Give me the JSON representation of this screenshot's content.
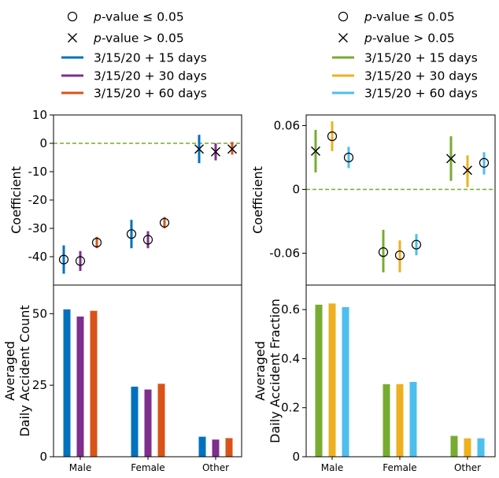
{
  "legends": {
    "left": [
      {
        "marker": "circle",
        "label_prefix": "p",
        "label_suffix": "-value  ≤  0.05"
      },
      {
        "marker": "x",
        "label_prefix": "p",
        "label_suffix": "-value  >  0.05"
      },
      {
        "marker": "line",
        "color": "#0072bd",
        "label": "3/15/20 + 15 days"
      },
      {
        "marker": "line",
        "color": "#7e2f8e",
        "label": "3/15/20 + 30 days"
      },
      {
        "marker": "line",
        "color": "#d95319",
        "label": "3/15/20 + 60 days"
      }
    ],
    "right": [
      {
        "marker": "circle",
        "label_prefix": "p",
        "label_suffix": "-value  ≤  0.05"
      },
      {
        "marker": "x",
        "label_prefix": "p",
        "label_suffix": "-value  >  0.05"
      },
      {
        "marker": "line",
        "color": "#77ac30",
        "label": "3/15/20 + 15 days"
      },
      {
        "marker": "line",
        "color": "#edb120",
        "label": "3/15/20 + 30 days"
      },
      {
        "marker": "line",
        "color": "#4dbeee",
        "label": "3/15/20 + 60 days"
      }
    ]
  },
  "chart_data": [
    {
      "id": "top-left",
      "type": "errorbar",
      "ylabel": "Coefficient",
      "ylim": [
        -50,
        10
      ],
      "yticks": [
        10,
        0,
        -10,
        -20,
        -30,
        -40
      ],
      "ytick_labels": [
        "10",
        "0",
        "-10",
        "-20",
        "-30",
        "-40"
      ],
      "reference_line": 0,
      "reference_color": "#77ac30",
      "categories": [
        "Male",
        "Female",
        "Other"
      ],
      "series": [
        {
          "name": "3/15/20 + 15 days",
          "color": "#0072bd",
          "values": [
            -41,
            -32,
            -2
          ],
          "lower": [
            -46,
            -37,
            -7
          ],
          "upper": [
            -36,
            -27,
            3
          ],
          "significant": [
            true,
            true,
            false
          ]
        },
        {
          "name": "3/15/20 + 30 days",
          "color": "#7e2f8e",
          "values": [
            -41.5,
            -34,
            -3
          ],
          "lower": [
            -45,
            -37,
            -6
          ],
          "upper": [
            -38,
            -31,
            0
          ],
          "significant": [
            true,
            true,
            false
          ]
        },
        {
          "name": "3/15/20 + 60 days",
          "color": "#d95319",
          "values": [
            -35,
            -28,
            -2
          ],
          "lower": [
            -37,
            -30,
            -4
          ],
          "upper": [
            -33,
            -26,
            0.5
          ],
          "significant": [
            true,
            true,
            false
          ]
        }
      ]
    },
    {
      "id": "top-right",
      "type": "errorbar",
      "ylabel": "Coefficient",
      "ylim": [
        -0.09,
        0.07
      ],
      "yticks": [
        0.06,
        0,
        -0.06
      ],
      "ytick_labels": [
        "0.06",
        "0",
        "-0.06"
      ],
      "reference_line": 0,
      "reference_color": "#77ac30",
      "categories": [
        "Male",
        "Female",
        "Other"
      ],
      "series": [
        {
          "name": "3/15/20 + 15 days",
          "color": "#77ac30",
          "values": [
            0.036,
            -0.059,
            0.029
          ],
          "lower": [
            0.016,
            -0.078,
            0.008
          ],
          "upper": [
            0.056,
            -0.038,
            0.05
          ],
          "significant": [
            false,
            true,
            false
          ]
        },
        {
          "name": "3/15/20 + 30 days",
          "color": "#edb120",
          "values": [
            0.05,
            -0.062,
            0.018
          ],
          "lower": [
            0.036,
            -0.078,
            0.002
          ],
          "upper": [
            0.064,
            -0.048,
            0.032
          ],
          "significant": [
            true,
            true,
            false
          ]
        },
        {
          "name": "3/15/20 + 60 days",
          "color": "#4dbeee",
          "values": [
            0.03,
            -0.052,
            0.025
          ],
          "lower": [
            0.02,
            -0.062,
            0.014
          ],
          "upper": [
            0.04,
            -0.042,
            0.035
          ],
          "significant": [
            true,
            true,
            true
          ]
        }
      ]
    },
    {
      "id": "bottom-left",
      "type": "bar",
      "ylabel_lines": [
        "Averaged",
        "Daily Accident Count"
      ],
      "ylim": [
        0,
        60
      ],
      "yticks": [
        0,
        25,
        50
      ],
      "ytick_labels": [
        "0",
        "25",
        "50"
      ],
      "categories": [
        "Male",
        "Female",
        "Other"
      ],
      "series": [
        {
          "name": "3/15/20 + 15 days",
          "color": "#0072bd",
          "values": [
            51.5,
            24.5,
            7
          ]
        },
        {
          "name": "3/15/20 + 30 days",
          "color": "#7e2f8e",
          "values": [
            49,
            23.5,
            6
          ]
        },
        {
          "name": "3/15/20 + 60 days",
          "color": "#d95319",
          "values": [
            51,
            25.5,
            6.5
          ]
        }
      ]
    },
    {
      "id": "bottom-right",
      "type": "bar",
      "ylabel_lines": [
        "Averaged",
        "Daily Accident Fraction"
      ],
      "ylim": [
        0,
        0.7
      ],
      "yticks": [
        0,
        0.2,
        0.4,
        0.6
      ],
      "ytick_labels": [
        "0",
        "0.2",
        "0.4",
        "0.6"
      ],
      "categories": [
        "Male",
        "Female",
        "Other"
      ],
      "series": [
        {
          "name": "3/15/20 + 15 days",
          "color": "#77ac30",
          "values": [
            0.62,
            0.296,
            0.085
          ]
        },
        {
          "name": "3/15/20 + 30 days",
          "color": "#edb120",
          "values": [
            0.625,
            0.296,
            0.075
          ]
        },
        {
          "name": "3/15/20 + 60 days",
          "color": "#4dbeee",
          "values": [
            0.61,
            0.305,
            0.075
          ]
        }
      ]
    }
  ]
}
